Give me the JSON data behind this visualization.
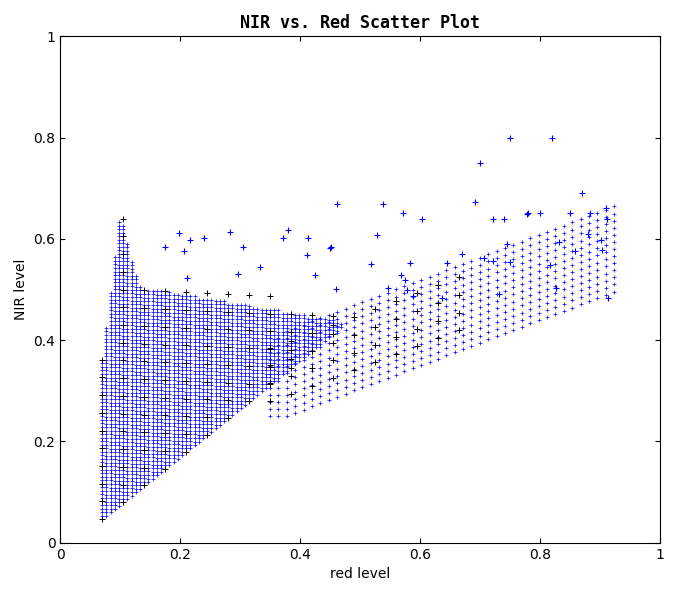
{
  "title": "NIR vs. Red Scatter Plot",
  "xlabel": "red level",
  "ylabel": "NIR level",
  "xlim": [
    0,
    1
  ],
  "ylim": [
    0,
    1
  ],
  "xticks": [
    0,
    0.2,
    0.4,
    0.6,
    0.8,
    1.0
  ],
  "yticks": [
    0,
    0.2,
    0.4,
    0.6,
    0.8,
    1.0
  ],
  "blue_marker": "+",
  "black_marker": "+",
  "blue_color": "#0000FF",
  "black_color": "#000000",
  "markersize": 3,
  "markeredgewidth": 0.5,
  "figsize": [
    6.78,
    5.95
  ],
  "dpi": 100,
  "title_fontsize": 12,
  "label_fontsize": 10,
  "tick_labelsize": 10
}
